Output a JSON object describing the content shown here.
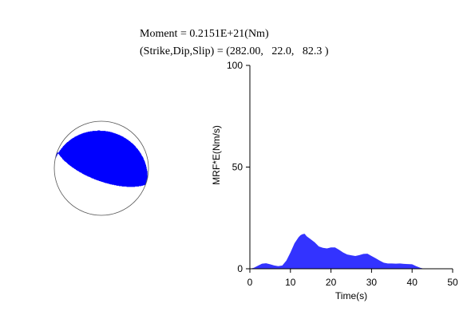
{
  "header": {
    "moment_line": "Moment = 0.2151E+21(Nm)",
    "mechanism_line": "(Strike,Dip,Slip) = (282.00,   22.0,   82.3 )"
  },
  "colors": {
    "fill": "#0000ff",
    "axis": "#000000",
    "sphere_outline": "#555555"
  },
  "beachball": {
    "strike": 282.0,
    "dip": 22.0,
    "slip": 82.3
  },
  "chart_data": {
    "type": "area",
    "title": "",
    "xlabel": "Time(s)",
    "ylabel": "MRF*E(Nm/s)",
    "xlim": [
      0,
      50
    ],
    "ylim": [
      0,
      100
    ],
    "xticks": [
      0,
      10,
      20,
      30,
      40,
      50
    ],
    "yticks": [
      0,
      50,
      100
    ],
    "grid": false,
    "series": [
      {
        "x": [
          0,
          1,
          2,
          3,
          4,
          5,
          6,
          7,
          8,
          9,
          10,
          11,
          12,
          12.5,
          13,
          13.5,
          14,
          15,
          16,
          17,
          18,
          19,
          20,
          21,
          22,
          23,
          24,
          25,
          26,
          27,
          28,
          29,
          30,
          31,
          32,
          33,
          34,
          35,
          36,
          37,
          38,
          39,
          40,
          41,
          42,
          43
        ],
        "y": [
          0,
          0.5,
          1.5,
          2.5,
          2.7,
          2.2,
          1.6,
          1.3,
          1.6,
          4,
          8,
          12.5,
          15.5,
          16.5,
          17,
          17.2,
          16,
          14.5,
          13,
          11,
          10.3,
          10,
          10.5,
          10.5,
          9.3,
          8,
          7,
          6.6,
          6.3,
          6.7,
          7.3,
          7.4,
          6.3,
          5.2,
          4,
          3,
          2.6,
          2.6,
          2.5,
          2.6,
          2.4,
          2.3,
          2.2,
          1.3,
          0.5,
          0
        ]
      }
    ]
  }
}
